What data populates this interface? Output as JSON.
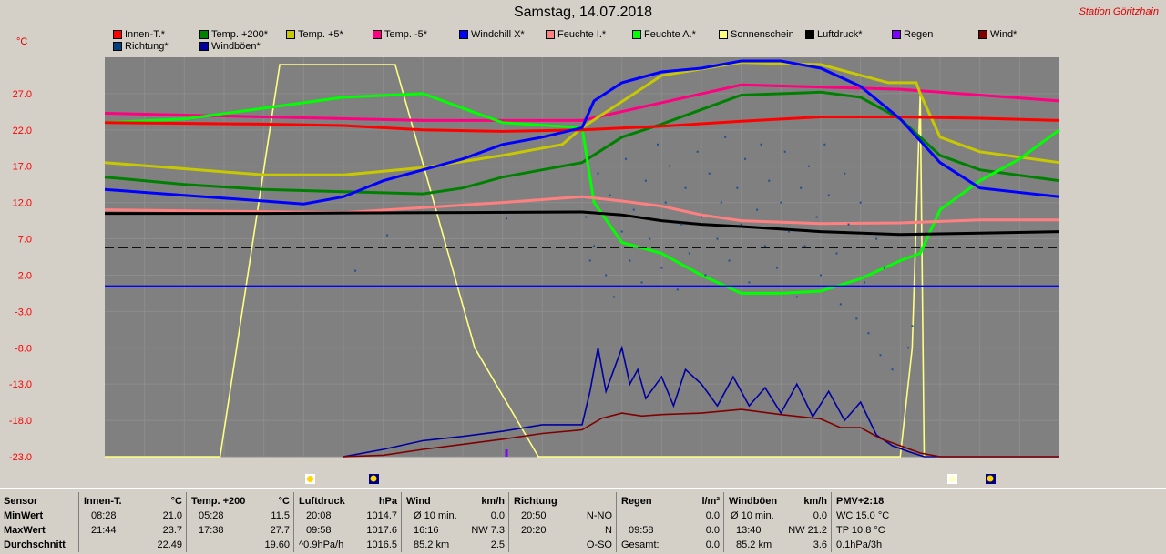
{
  "title": "Samstag, 14.07.2018",
  "station": "Station Göritzhain",
  "unit_label": "°C",
  "legend": [
    {
      "label": "Innen-T.*",
      "color": "#ff0000"
    },
    {
      "label": "Temp. +200*",
      "color": "#008000"
    },
    {
      "label": "Temp. +5*",
      "color": "#c8c800"
    },
    {
      "label": "Temp. -5*",
      "color": "#ff0080"
    },
    {
      "label": "Windchill X*",
      "color": "#0000ff"
    },
    {
      "label": "Feuchte I.*",
      "color": "#ff8080"
    },
    {
      "label": "Feuchte A.*",
      "color": "#00ff00"
    },
    {
      "label": "Sonnenschein",
      "color": "#ffff80"
    },
    {
      "label": "Luftdruck*",
      "color": "#000000"
    },
    {
      "label": "Regen",
      "color": "#8000ff"
    },
    {
      "label": "Wind*",
      "color": "#800000"
    },
    {
      "label": "Richtung*",
      "color": "#004080"
    },
    {
      "label": "Windböen*",
      "color": "#0000a0"
    }
  ],
  "chart_data": {
    "type": "line",
    "title": "Samstag, 14.07.2018",
    "ylabel": "°C",
    "yticks": [
      "27.0",
      "22.0",
      "17.0",
      "12.0",
      "7.0",
      "2.0",
      "-3.0",
      "-8.0",
      "-13.0",
      "-18.0",
      "-23.0"
    ],
    "ylim": [
      -23,
      32
    ],
    "xlim": [
      0,
      24
    ],
    "grid": true,
    "series": [
      {
        "name": "Sonnenschein",
        "color": "#ffff80",
        "points": [
          [
            0,
            -23
          ],
          [
            2.9,
            -23
          ],
          [
            4.4,
            31
          ],
          [
            7.3,
            31
          ],
          [
            9.3,
            -8
          ],
          [
            10.9,
            -23
          ],
          [
            20,
            -23
          ],
          [
            20.3,
            -8
          ],
          [
            20.5,
            27
          ],
          [
            20.6,
            -23
          ],
          [
            24,
            -23
          ]
        ]
      },
      {
        "name": "Temp. -5*",
        "color": "#ff0080",
        "points": [
          [
            0,
            24.3
          ],
          [
            4,
            23.8
          ],
          [
            8,
            23.3
          ],
          [
            12,
            23.3
          ],
          [
            16,
            28.2
          ],
          [
            20,
            27.6
          ],
          [
            24,
            26
          ]
        ]
      },
      {
        "name": "Temp. +5*",
        "color": "#c8c800",
        "points": [
          [
            0,
            17.5
          ],
          [
            4,
            15.8
          ],
          [
            6,
            15.8
          ],
          [
            8,
            16.8
          ],
          [
            10,
            18.5
          ],
          [
            11.5,
            20
          ],
          [
            12,
            22.3
          ],
          [
            14,
            29.5
          ],
          [
            16,
            31.3
          ],
          [
            18,
            31
          ],
          [
            19.7,
            28.5
          ],
          [
            20.4,
            28.5
          ],
          [
            20.5,
            27
          ],
          [
            21,
            21
          ],
          [
            22,
            19
          ],
          [
            24,
            17.5
          ]
        ]
      },
      {
        "name": "Temp. +200*",
        "color": "#008000",
        "points": [
          [
            0,
            15.5
          ],
          [
            2,
            14.5
          ],
          [
            4,
            13.8
          ],
          [
            6,
            13.5
          ],
          [
            8,
            13.2
          ],
          [
            9,
            14
          ],
          [
            10,
            15.5
          ],
          [
            12,
            17.5
          ],
          [
            13,
            21
          ],
          [
            14,
            22.8
          ],
          [
            16,
            26.8
          ],
          [
            18,
            27.2
          ],
          [
            19,
            26.5
          ],
          [
            20,
            23.5
          ],
          [
            21,
            18.5
          ],
          [
            22,
            16.5
          ],
          [
            24,
            15
          ]
        ]
      },
      {
        "name": "Feuchte A.*",
        "color": "#00ff00",
        "points": [
          [
            0,
            23
          ],
          [
            2,
            23.5
          ],
          [
            4,
            25
          ],
          [
            6,
            26.5
          ],
          [
            8,
            27
          ],
          [
            10,
            23
          ],
          [
            12,
            22.3
          ],
          [
            12.3,
            12
          ],
          [
            13,
            6.5
          ],
          [
            14,
            5
          ],
          [
            15,
            2
          ],
          [
            16,
            -0.5
          ],
          [
            17,
            -0.5
          ],
          [
            18,
            -0.2
          ],
          [
            19,
            1.5
          ],
          [
            20,
            4
          ],
          [
            20.5,
            5
          ],
          [
            21,
            11
          ],
          [
            22,
            15
          ],
          [
            23,
            18
          ],
          [
            24,
            22
          ]
        ]
      },
      {
        "name": "Innen-T.*",
        "color": "#ff0000",
        "points": [
          [
            0,
            23
          ],
          [
            4,
            22.8
          ],
          [
            6,
            22.6
          ],
          [
            8,
            22
          ],
          [
            10,
            21.8
          ],
          [
            12,
            22
          ],
          [
            14,
            22.5
          ],
          [
            16,
            23.2
          ],
          [
            18,
            23.8
          ],
          [
            20,
            23.8
          ],
          [
            22,
            23.6
          ],
          [
            24,
            23.3
          ]
        ]
      },
      {
        "name": "Windchill X*",
        "color": "#0000ff",
        "points": [
          [
            0,
            13.8
          ],
          [
            2,
            13
          ],
          [
            4,
            12.2
          ],
          [
            5,
            11.8
          ],
          [
            6,
            12.8
          ],
          [
            7,
            15
          ],
          [
            8,
            16.5
          ],
          [
            9,
            18
          ],
          [
            10,
            20
          ],
          [
            11,
            21
          ],
          [
            12,
            22.3
          ],
          [
            12.3,
            26
          ],
          [
            13,
            28.5
          ],
          [
            14,
            30
          ],
          [
            15,
            30.5
          ],
          [
            16,
            31.5
          ],
          [
            17,
            31.5
          ],
          [
            18,
            30.5
          ],
          [
            19,
            28
          ],
          [
            20,
            23.5
          ],
          [
            21,
            17.5
          ],
          [
            22,
            14
          ],
          [
            24,
            12.8
          ]
        ]
      },
      {
        "name": "Feuchte I.*",
        "color": "#ff8080",
        "points": [
          [
            0,
            11
          ],
          [
            3,
            10.8
          ],
          [
            6,
            10.6
          ],
          [
            8,
            11.3
          ],
          [
            10,
            12
          ],
          [
            12,
            12.8
          ],
          [
            13,
            12.2
          ],
          [
            14,
            11.5
          ],
          [
            15,
            10.3
          ],
          [
            16,
            9.5
          ],
          [
            18,
            9.1
          ],
          [
            20,
            9.2
          ],
          [
            22,
            9.6
          ],
          [
            24,
            9.6
          ]
        ]
      },
      {
        "name": "Luftdruck*",
        "color": "#000000",
        "points": [
          [
            0,
            10.5
          ],
          [
            4,
            10.5
          ],
          [
            8,
            10.6
          ],
          [
            12,
            10.7
          ],
          [
            13,
            10.3
          ],
          [
            14,
            9.5
          ],
          [
            15,
            9
          ],
          [
            16,
            8.7
          ],
          [
            18,
            8
          ],
          [
            20,
            7.6
          ],
          [
            22,
            7.8
          ],
          [
            24,
            8
          ]
        ]
      },
      {
        "name": "Windböen*",
        "color": "#0000a0",
        "points": [
          [
            6,
            -23
          ],
          [
            7,
            -22
          ],
          [
            8,
            -20.8
          ],
          [
            9,
            -20.2
          ],
          [
            10,
            -19.5
          ],
          [
            11,
            -18.6
          ],
          [
            12,
            -18.6
          ],
          [
            12.2,
            -14
          ],
          [
            12.4,
            -8
          ],
          [
            12.6,
            -14
          ],
          [
            12.8,
            -11
          ],
          [
            13,
            -8
          ],
          [
            13.2,
            -13
          ],
          [
            13.4,
            -11
          ],
          [
            13.6,
            -15
          ],
          [
            14,
            -12
          ],
          [
            14.3,
            -16
          ],
          [
            14.6,
            -11
          ],
          [
            15,
            -13
          ],
          [
            15.4,
            -16
          ],
          [
            15.8,
            -12
          ],
          [
            16.2,
            -16
          ],
          [
            16.6,
            -13.5
          ],
          [
            17,
            -17
          ],
          [
            17.4,
            -13
          ],
          [
            17.8,
            -17.5
          ],
          [
            18.2,
            -14
          ],
          [
            18.6,
            -18
          ],
          [
            19,
            -15.5
          ],
          [
            19.4,
            -20
          ],
          [
            19.8,
            -21.5
          ],
          [
            20.2,
            -22.3
          ],
          [
            20.6,
            -23
          ],
          [
            24,
            -23
          ]
        ]
      },
      {
        "name": "Wind*",
        "color": "#800000",
        "points": [
          [
            6,
            -23
          ],
          [
            7,
            -22.8
          ],
          [
            8,
            -22
          ],
          [
            9,
            -21.3
          ],
          [
            10,
            -20.6
          ],
          [
            11,
            -19.8
          ],
          [
            12,
            -19.3
          ],
          [
            12.5,
            -17.7
          ],
          [
            13,
            -17
          ],
          [
            13.5,
            -17.4
          ],
          [
            14,
            -17.2
          ],
          [
            15,
            -17
          ],
          [
            16,
            -16.5
          ],
          [
            17,
            -17.2
          ],
          [
            18,
            -17.8
          ],
          [
            18.5,
            -19
          ],
          [
            19,
            -19
          ],
          [
            19.5,
            -20.5
          ],
          [
            20,
            -21.5
          ],
          [
            20.5,
            -22.5
          ],
          [
            21,
            -23
          ],
          [
            24,
            -23
          ]
        ]
      },
      {
        "name": "reference-line",
        "color": "#0000ff",
        "points": [
          [
            0,
            0.5
          ],
          [
            24,
            0.5
          ]
        ]
      },
      {
        "name": "reference-dashed",
        "color": "#000000",
        "dashed": true,
        "points": [
          [
            0,
            5.8
          ],
          [
            24,
            5.8
          ]
        ]
      }
    ],
    "richtung_points": [
      [
        12.1,
        10
      ],
      [
        12.2,
        4
      ],
      [
        12.3,
        6
      ],
      [
        12.4,
        16
      ],
      [
        12.6,
        2
      ],
      [
        12.7,
        13
      ],
      [
        12.8,
        -1
      ],
      [
        13,
        8
      ],
      [
        13.1,
        18
      ],
      [
        13.2,
        4
      ],
      [
        13.3,
        11
      ],
      [
        13.5,
        1
      ],
      [
        13.6,
        15
      ],
      [
        13.7,
        7
      ],
      [
        13.9,
        20
      ],
      [
        14,
        3
      ],
      [
        14.1,
        12
      ],
      [
        14.2,
        17
      ],
      [
        14.4,
        0
      ],
      [
        14.5,
        9
      ],
      [
        14.6,
        14
      ],
      [
        14.7,
        5
      ],
      [
        14.9,
        19
      ],
      [
        15,
        10
      ],
      [
        15.1,
        2
      ],
      [
        15.2,
        16
      ],
      [
        15.4,
        7
      ],
      [
        15.5,
        12
      ],
      [
        15.6,
        21
      ],
      [
        15.7,
        4
      ],
      [
        15.9,
        14
      ],
      [
        16,
        9
      ],
      [
        16.1,
        18
      ],
      [
        16.2,
        1
      ],
      [
        16.4,
        11
      ],
      [
        16.5,
        20
      ],
      [
        16.6,
        6
      ],
      [
        16.7,
        15
      ],
      [
        16.9,
        3
      ],
      [
        17,
        12
      ],
      [
        17.1,
        19
      ],
      [
        17.2,
        8
      ],
      [
        17.4,
        -1
      ],
      [
        17.5,
        14
      ],
      [
        17.6,
        6
      ],
      [
        17.7,
        17
      ],
      [
        17.9,
        10
      ],
      [
        18,
        2
      ],
      [
        18.1,
        20
      ],
      [
        18.2,
        13
      ],
      [
        18.4,
        5
      ],
      [
        18.5,
        -2
      ],
      [
        18.6,
        16
      ],
      [
        18.7,
        9
      ],
      [
        18.9,
        -4
      ],
      [
        19,
        12
      ],
      [
        19.1,
        1
      ],
      [
        19.2,
        -6
      ],
      [
        19.4,
        7
      ],
      [
        19.5,
        -9
      ],
      [
        19.6,
        3
      ],
      [
        19.8,
        -11
      ],
      [
        20.2,
        -8
      ],
      [
        20.3,
        -5
      ],
      [
        6.3,
        2.6
      ],
      [
        7.1,
        7.5
      ],
      [
        10.1,
        9.8
      ]
    ],
    "regen_bar": [
      10.1,
      -22
    ]
  },
  "icons": {
    "sun_morning": "sun-icon",
    "moon_morning": "moon-icon",
    "sun_evening": "sun-icon",
    "moon_evening": "moon-icon"
  },
  "table": {
    "labels": {
      "sensor": "Sensor",
      "min": "MinWert",
      "max": "MaxWert",
      "avg": "Durchschnitt"
    },
    "innen": {
      "name": "Innen-T.",
      "unit": "°C",
      "min_time": "08:28",
      "min_val": "21.0",
      "max_time": "21:44",
      "max_val": "23.7",
      "avg": "22.49"
    },
    "temp200": {
      "name": "Temp. +200",
      "unit": "°C",
      "min_time": "05:28",
      "min_val": "11.5",
      "max_time": "17:38",
      "max_val": "27.7",
      "avg": "19.60"
    },
    "luftdruck": {
      "name": "Luftdruck",
      "unit": "hPa",
      "min_time": "20:08",
      "min_val": "1014.7",
      "max_time": "09:58",
      "max_val": "1017.6",
      "avg_label": "^0.9hPa/h",
      "avg": "1016.5"
    },
    "wind": {
      "name": "Wind",
      "unit": "km/h",
      "min_label": "Ø 10 min.",
      "min_val": "0.0",
      "max_time": "16:16",
      "max_val": "NW 7.3",
      "avg_label": "85.2 km",
      "avg": "2.5"
    },
    "richtung": {
      "name": "Richtung",
      "min_time": "20:50",
      "min_val": "N-NO",
      "max_time": "20:20",
      "max_val": "N",
      "avg": "O-SO"
    },
    "regen": {
      "name": "Regen",
      "unit": "l/m²",
      "max_time": "09:58",
      "max_val": "0.0",
      "min_val": "0.0",
      "avg_label": "Gesamt:",
      "avg": "0.0"
    },
    "boen": {
      "name": "Windböen",
      "unit": "km/h",
      "min_label": "Ø 10 min.",
      "min_val": "0.0",
      "max_time": "13:40",
      "max_val": "NW 21.2",
      "avg_label": "85.2 km",
      "avg": "3.6"
    },
    "pmv": {
      "name": "PMV+2:18",
      "min_val": "WC 15.0 °C",
      "max_val": "TP 10.8 °C",
      "avg": "0.1hPa/3h"
    }
  }
}
